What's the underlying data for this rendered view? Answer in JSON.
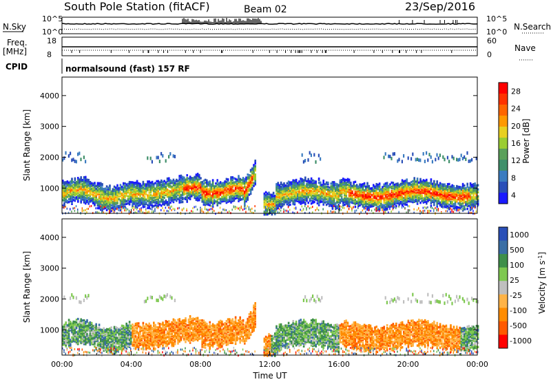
{
  "header": {
    "station": "South Pole Station (fitACF)",
    "beam": "Beam 02",
    "date": "23/Sep/2016"
  },
  "left_labels": {
    "nsky": "N.Sky",
    "freq": "Freq.",
    "mhz": "[MHz]",
    "cpid": "CPID"
  },
  "right_labels": {
    "nsearch": "N.Search",
    "nave": "Nave"
  },
  "cpid_value": "normalsound (fast) 157 RF",
  "colors": {
    "power": [
      "#1a1aff",
      "#2a4fb8",
      "#3b7cc0",
      "#3f8f6a",
      "#5aa05a",
      "#9acd32",
      "#e8d020",
      "#ff9900",
      "#ff6600",
      "#ff3300",
      "#ff0000"
    ],
    "velocity": [
      "#ff0000",
      "#ff5a00",
      "#ff8c00",
      "#ffb347",
      "#bfbfbf",
      "#7ec850",
      "#3f8f4a",
      "#3a6ea5",
      "#2a4fb8"
    ]
  },
  "chart_data": [
    {
      "type": "line",
      "name_panel": "noise",
      "left_ticks": [
        "10^5",
        "10^0"
      ],
      "right_ticks": [
        "10^5",
        "10^0"
      ],
      "ylim": [
        0,
        5
      ]
    },
    {
      "type": "line",
      "name_panel": "freq",
      "left_ticks": [
        "18",
        "8"
      ],
      "right_ticks": [
        "60",
        "0"
      ],
      "ylim": [
        8,
        18
      ]
    },
    {
      "type": "heatmap",
      "name_panel": "power",
      "ylabel": "Slant Range [km]",
      "yticks": [
        1000,
        2000,
        3000,
        4000
      ],
      "ylim": [
        180,
        4600
      ],
      "xlim": [
        0,
        24
      ],
      "colorbar_label": "Power [dB]",
      "colorbar_ticks": [
        "28",
        "24",
        "20",
        "16",
        "12",
        "8",
        "4"
      ],
      "clim": [
        0,
        30
      ]
    },
    {
      "type": "heatmap",
      "name_panel": "velocity",
      "ylabel": "Slant Range [km]",
      "yticks": [
        1000,
        2000,
        3000,
        4000
      ],
      "ylim": [
        180,
        4600
      ],
      "xlim": [
        0,
        24
      ],
      "colorbar_label": "Velocity [m s",
      "colorbar_sup": "-1",
      "colorbar_close": "]",
      "colorbar_ticks": [
        "1000",
        "500",
        "100",
        "25",
        "-25",
        "-100",
        "-500",
        "-1000"
      ],
      "xlabel": "Time UT",
      "xticks": [
        "00:00",
        "04:00",
        "08:00",
        "12:00",
        "16:00",
        "20:00",
        "00:00"
      ]
    }
  ]
}
